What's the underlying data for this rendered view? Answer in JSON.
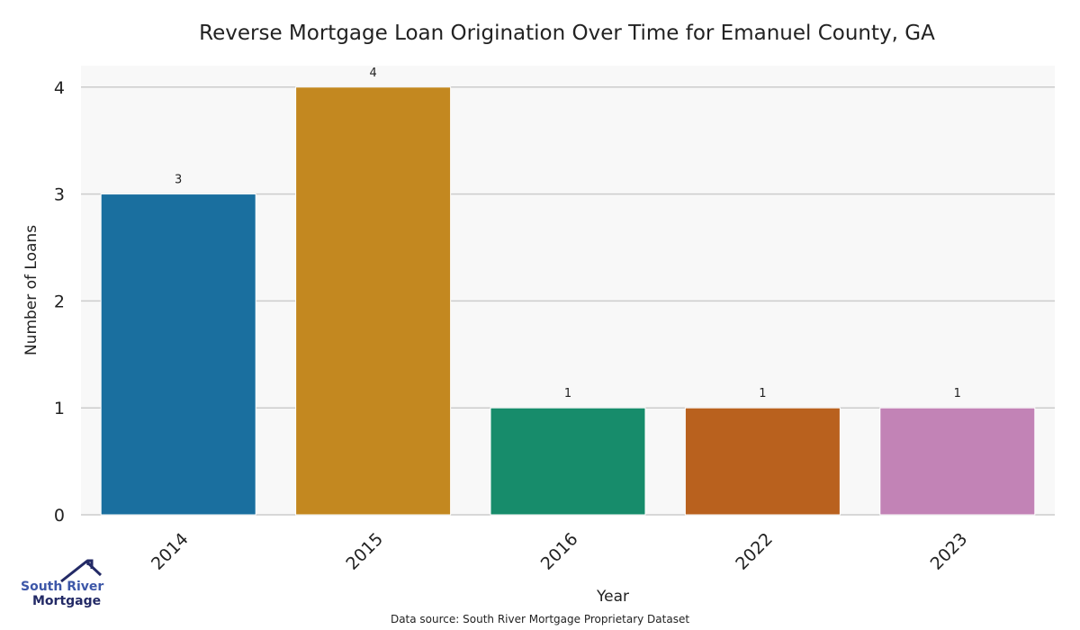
{
  "chart_data": {
    "type": "bar",
    "title": "Reverse Mortgage Loan Origination Over Time for Emanuel County, GA",
    "xlabel": "Year",
    "ylabel": "Number of Loans",
    "categories": [
      "2014",
      "2015",
      "2016",
      "2022",
      "2023"
    ],
    "values": [
      3,
      4,
      1,
      1,
      1
    ],
    "colors": [
      "#1a6f9f",
      "#c38820",
      "#178c6b",
      "#b9611e",
      "#c283b6"
    ],
    "yticks": [
      0,
      1,
      2,
      3,
      4
    ],
    "ylim": [
      0,
      4.2
    ],
    "grid": true,
    "background": "#f8f8f8"
  },
  "source": "Data source: South River Mortgage Proprietary Dataset",
  "logo": {
    "line1": "South River",
    "line2": "Mortgage"
  }
}
